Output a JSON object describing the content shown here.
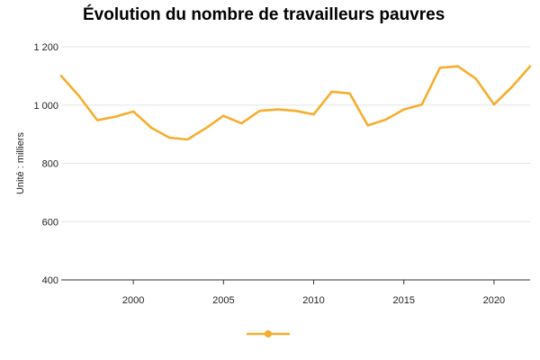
{
  "chart_data": {
    "type": "line",
    "title": "Évolution du nombre de travailleurs pauvres",
    "ylabel": "Unité : milliers",
    "xlabel": "",
    "ylim": [
      400,
      1200
    ],
    "xlim": [
      1996,
      2022
    ],
    "y_ticks": [
      400,
      600,
      800,
      1000,
      1200
    ],
    "y_tick_labels": [
      "400",
      "600",
      "800",
      "1 000",
      "1 200"
    ],
    "x_ticks": [
      2000,
      2005,
      2010,
      2015,
      2020
    ],
    "x_tick_labels": [
      "2000",
      "2005",
      "2010",
      "2015",
      "2020"
    ],
    "grid": "horizontal",
    "legend": "bottom",
    "color": "#f5ae2d",
    "series": [
      {
        "x": [
          1996,
          1997,
          1998,
          1999,
          2000,
          2001,
          2002,
          2003,
          2004,
          2005,
          2006,
          2007,
          2008,
          2009,
          2010,
          2011,
          2012,
          2013,
          2014,
          2015,
          2016,
          2017,
          2018,
          2019,
          2020,
          2021,
          2022
        ],
        "values": [
          1100,
          1030,
          948,
          960,
          978,
          922,
          888,
          882,
          920,
          963,
          937,
          980,
          985,
          980,
          968,
          1046,
          1040,
          930,
          950,
          985,
          1002,
          1128,
          1133,
          1090,
          1002,
          1063,
          1133
        ]
      }
    ]
  }
}
